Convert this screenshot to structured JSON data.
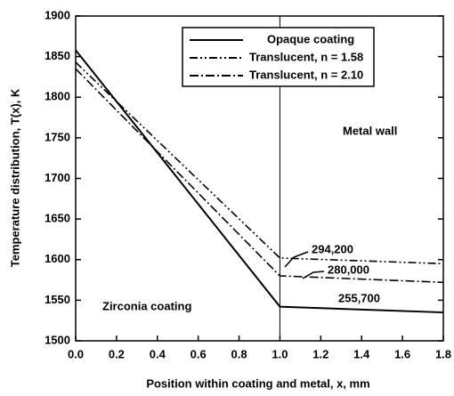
{
  "chart_data": {
    "type": "line",
    "xlabel": "Position within coating and metal, x, mm",
    "ylabel": "Temperature distribution, T(x), K",
    "x": [
      0,
      1.0,
      1.8
    ],
    "series": [
      {
        "name": "Opaque coating",
        "color": "#000000",
        "dash": "solid",
        "values": [
          1858,
          1542,
          1535
        ]
      },
      {
        "name": "Translucent, n = 1.58",
        "color": "#000000",
        "dash": "dash-dot-dot",
        "values": [
          1843,
          1602,
          1595
        ]
      },
      {
        "name": "Translucent, n = 2.10",
        "color": "#000000",
        "dash": "dash-dot",
        "values": [
          1835,
          1580,
          1572
        ]
      }
    ],
    "annotations": [
      "294,200",
      "280,000",
      "255,700",
      "Metal wall",
      "Zirconia coating"
    ],
    "xlim": [
      0,
      1.8
    ],
    "xticks": [
      {
        "value": 0,
        "label": "0.0"
      },
      0.2,
      0.4,
      0.6,
      0.8,
      {
        "value": 1,
        "label": "1.0"
      },
      1.2,
      1.4,
      1.6,
      1.8
    ],
    "ylim": [
      1500,
      1900
    ],
    "yticks": [
      1500,
      1550,
      1600,
      1650,
      1700,
      1750,
      1800,
      1850,
      1900
    ],
    "legend": "upper right"
  }
}
